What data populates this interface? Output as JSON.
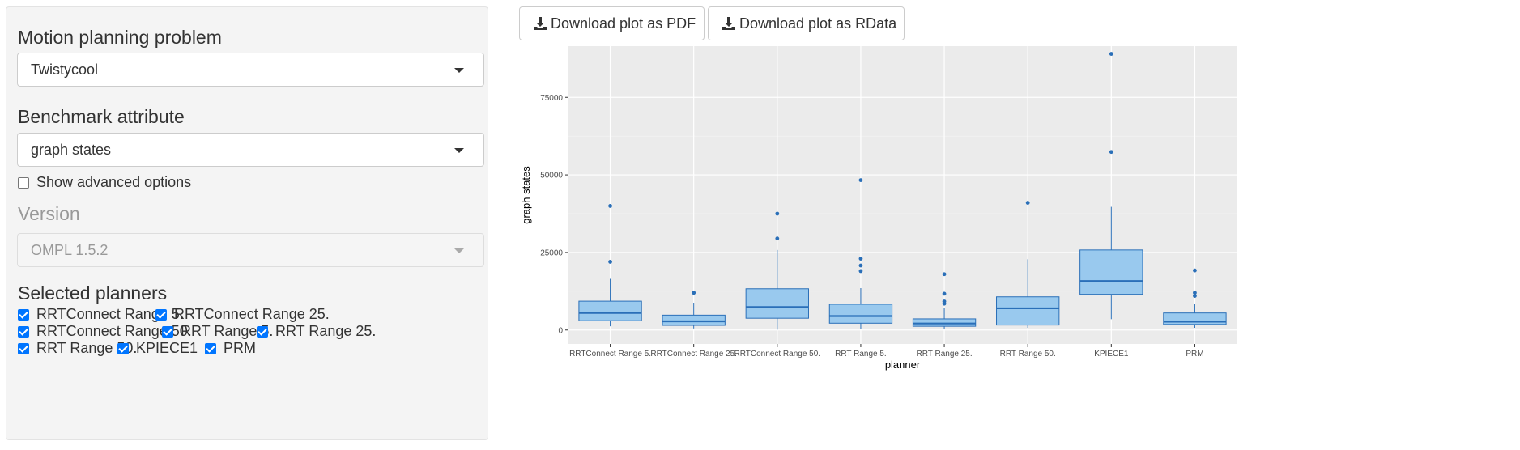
{
  "sidebar": {
    "problem": {
      "title": "Motion planning problem",
      "selected": "Twistycool"
    },
    "attribute": {
      "title": "Benchmark attribute",
      "selected": "graph states"
    },
    "advanced": {
      "label": "Show advanced options",
      "checked": false
    },
    "version": {
      "title": "Version",
      "selected": "OMPL 1.5.2",
      "disabled": true
    },
    "planners": {
      "title": "Selected planners",
      "items": [
        {
          "label": "RRTConnect Range 5.",
          "checked": true
        },
        {
          "label": "RRTConnect Range 25.",
          "checked": true
        },
        {
          "label": "RRTConnect Range 50.",
          "checked": true
        },
        {
          "label": "RRT Range 5.",
          "checked": true
        },
        {
          "label": "RRT Range 25.",
          "checked": true
        },
        {
          "label": "RRT Range 50.",
          "checked": true
        },
        {
          "label": "KPIECE1",
          "checked": true
        },
        {
          "label": "PRM",
          "checked": true
        }
      ]
    }
  },
  "toolbar": {
    "pdf_label": "Download plot as PDF",
    "rdata_label": "Download plot as RData",
    "download_icon": "download-icon"
  },
  "colors": {
    "panel_bg": "#ebebeb",
    "box_fill": "#99c9ee",
    "box_stroke": "#2a6fb8",
    "outlier": "#2a6fb8",
    "checkbox": "#0075ff"
  },
  "chart_data": {
    "type": "boxplot",
    "title": "",
    "xlabel": "planner",
    "ylabel": "graph states",
    "ylim": [
      -4500,
      91500
    ],
    "yticks": [
      0,
      25000,
      50000,
      75000
    ],
    "ytick_labels": [
      "0",
      "25000",
      "50000",
      "75000"
    ],
    "grid": true,
    "categories": [
      "RRTConnect Range 5.",
      "RRTConnect Range 25.",
      "RRTConnect Range 50.",
      "RRT Range 5.",
      "RRT Range 25.",
      "RRT Range 50.",
      "KPIECE1",
      "PRM"
    ],
    "boxes": [
      {
        "min": 1200,
        "q1": 3000,
        "median": 5500,
        "q3": 9300,
        "max": 16500,
        "outliers": [
          22000,
          40000
        ]
      },
      {
        "min": 500,
        "q1": 1500,
        "median": 2800,
        "q3": 4800,
        "max": 8800,
        "outliers": [
          12000
        ]
      },
      {
        "min": 100,
        "q1": 3800,
        "median": 7400,
        "q3": 13300,
        "max": 25800,
        "outliers": [
          29500,
          37500
        ]
      },
      {
        "min": 200,
        "q1": 2200,
        "median": 4500,
        "q3": 8300,
        "max": 13500,
        "outliers": [
          19000,
          20800,
          23000,
          48300
        ]
      },
      {
        "min": 200,
        "q1": 1200,
        "median": 2100,
        "q3": 3600,
        "max": 7000,
        "outliers": [
          8500,
          9200,
          11700,
          18000
        ]
      },
      {
        "min": 700,
        "q1": 1600,
        "median": 7000,
        "q3": 10700,
        "max": 22800,
        "outliers": [
          41000
        ]
      },
      {
        "min": 3500,
        "q1": 11500,
        "median": 15800,
        "q3": 25800,
        "max": 39700,
        "outliers": [
          57400,
          89000
        ]
      },
      {
        "min": 700,
        "q1": 1800,
        "median": 2700,
        "q3": 5500,
        "max": 8300,
        "outliers": [
          11000,
          12000,
          19200
        ]
      }
    ]
  }
}
